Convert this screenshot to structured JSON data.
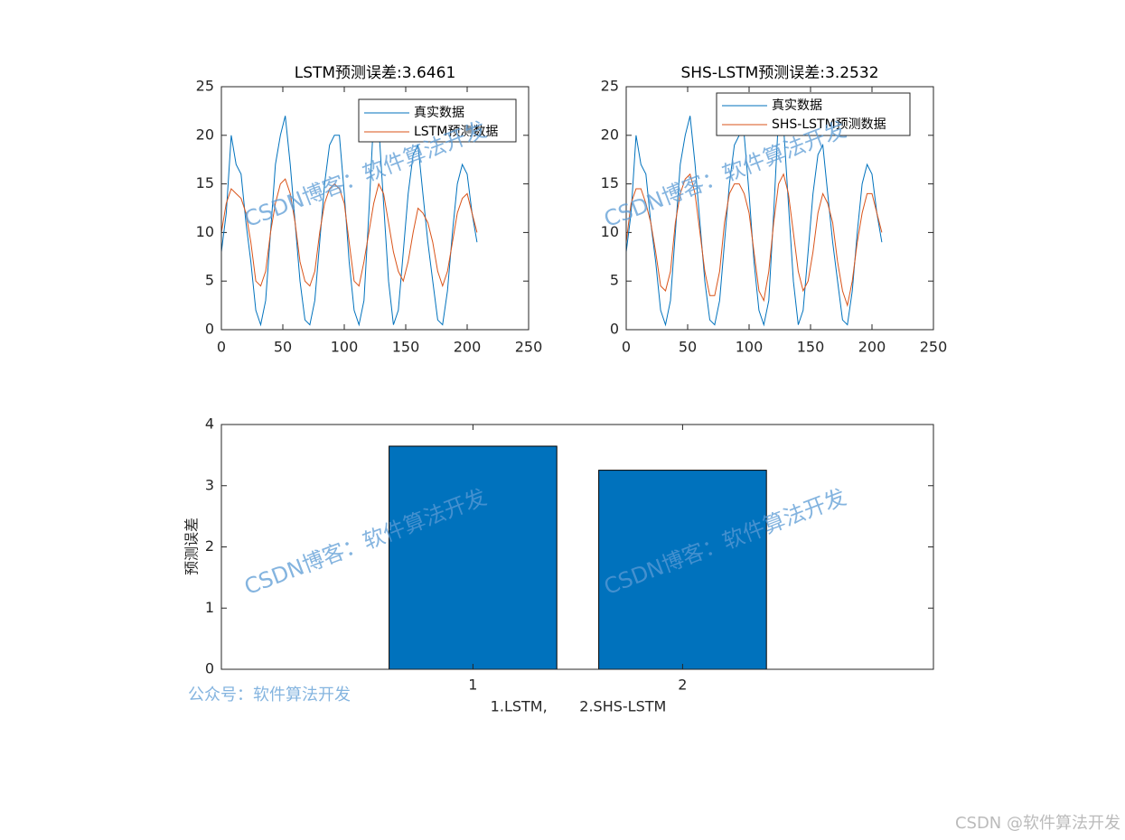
{
  "chart_data": [
    {
      "type": "line",
      "title": "LSTM预测误差:3.6461",
      "x": [
        0,
        4,
        8,
        12,
        16,
        20,
        24,
        28,
        32,
        36,
        40,
        44,
        48,
        52,
        56,
        60,
        64,
        68,
        72,
        76,
        80,
        84,
        88,
        92,
        96,
        100,
        104,
        108,
        112,
        116,
        120,
        124,
        128,
        132,
        136,
        140,
        144,
        148,
        152,
        156,
        160,
        164,
        168,
        172,
        176,
        180,
        184,
        188,
        192,
        196,
        200,
        204,
        208
      ],
      "series": [
        {
          "name": "真实数据",
          "color": "#0072BD",
          "values": [
            8,
            12,
            20,
            17,
            16,
            11,
            7,
            2,
            0.5,
            3,
            10,
            17,
            20,
            22,
            17,
            11,
            5,
            1,
            0.5,
            3,
            9,
            15,
            19,
            20,
            20,
            14,
            7,
            2,
            0.5,
            3,
            12,
            22,
            21,
            13,
            5,
            0.5,
            2,
            8,
            14,
            18,
            19,
            14,
            9,
            5,
            1,
            0.5,
            4,
            10,
            15,
            17,
            16,
            12,
            9
          ]
        },
        {
          "name": "LSTM预测数据",
          "color": "#D95319",
          "values": [
            10,
            13,
            14.5,
            14,
            13.5,
            12,
            9,
            5,
            4.5,
            6,
            10,
            13,
            15,
            15.5,
            14,
            11,
            7,
            5,
            4.5,
            6,
            10,
            13,
            14.5,
            15,
            14.5,
            13,
            9,
            5,
            4.5,
            7,
            10,
            13,
            15,
            14,
            11,
            8,
            6,
            5,
            7,
            10,
            12.5,
            12,
            11,
            9,
            6,
            4.5,
            6,
            9,
            12,
            13.5,
            14,
            12,
            10
          ]
        }
      ],
      "xlim": [
        0,
        250
      ],
      "xticks": [
        0,
        50,
        100,
        150,
        200,
        250
      ],
      "ylim": [
        0,
        25
      ],
      "yticks": [
        0,
        5,
        10,
        15,
        20,
        25
      ],
      "legend": "top-right"
    },
    {
      "type": "line",
      "title": "SHS-LSTM预测误差:3.2532",
      "x": [
        0,
        4,
        8,
        12,
        16,
        20,
        24,
        28,
        32,
        36,
        40,
        44,
        48,
        52,
        56,
        60,
        64,
        68,
        72,
        76,
        80,
        84,
        88,
        92,
        96,
        100,
        104,
        108,
        112,
        116,
        120,
        124,
        128,
        132,
        136,
        140,
        144,
        148,
        152,
        156,
        160,
        164,
        168,
        172,
        176,
        180,
        184,
        188,
        192,
        196,
        200,
        204,
        208
      ],
      "series": [
        {
          "name": "真实数据",
          "color": "#0072BD",
          "values": [
            8,
            12,
            20,
            17,
            16,
            11,
            7,
            2,
            0.5,
            3,
            10,
            17,
            20,
            22,
            17,
            11,
            5,
            1,
            0.5,
            3,
            9,
            15,
            19,
            20,
            20,
            14,
            7,
            2,
            0.5,
            3,
            12,
            22,
            21,
            13,
            5,
            0.5,
            2,
            8,
            14,
            18,
            19,
            14,
            9,
            5,
            1,
            0.5,
            4,
            10,
            15,
            17,
            16,
            12,
            9
          ]
        },
        {
          "name": "SHS-LSTM预测数据",
          "color": "#D95319",
          "values": [
            9,
            13,
            14.5,
            14.5,
            13,
            11,
            8,
            4.5,
            4,
            6,
            11,
            14,
            15.5,
            16,
            14,
            10,
            6,
            3.5,
            3.5,
            6,
            11,
            14,
            15,
            15,
            14,
            12,
            8,
            4,
            3,
            6,
            11,
            15,
            16,
            14,
            10,
            6,
            4,
            5,
            8,
            12,
            14,
            13,
            11,
            7,
            4,
            2.5,
            5,
            9,
            12,
            14,
            14,
            12,
            10
          ]
        }
      ],
      "xlim": [
        0,
        250
      ],
      "xticks": [
        0,
        50,
        100,
        150,
        200,
        250
      ],
      "ylim": [
        0,
        25
      ],
      "yticks": [
        0,
        5,
        10,
        15,
        20,
        25
      ],
      "legend": "top-right"
    },
    {
      "type": "bar",
      "categories": [
        "1",
        "2"
      ],
      "values": [
        3.6461,
        3.2532
      ],
      "color": "#0072BD",
      "x_label": "1.LSTM,       2.SHS-LSTM",
      "y_label": "预测误差",
      "ylim": [
        0,
        4
      ],
      "yticks": [
        0,
        1,
        2,
        3,
        4
      ]
    }
  ],
  "watermarks": [
    "CSDN博客：软件算法开发",
    "CSDN博客：软件算法开发",
    "CSDN博客：软件算法开发",
    "CSDN博客：软件算法开发"
  ],
  "footer_note": "公众号：软件算法开发",
  "site_mark": "CSDN @软件算法开发"
}
